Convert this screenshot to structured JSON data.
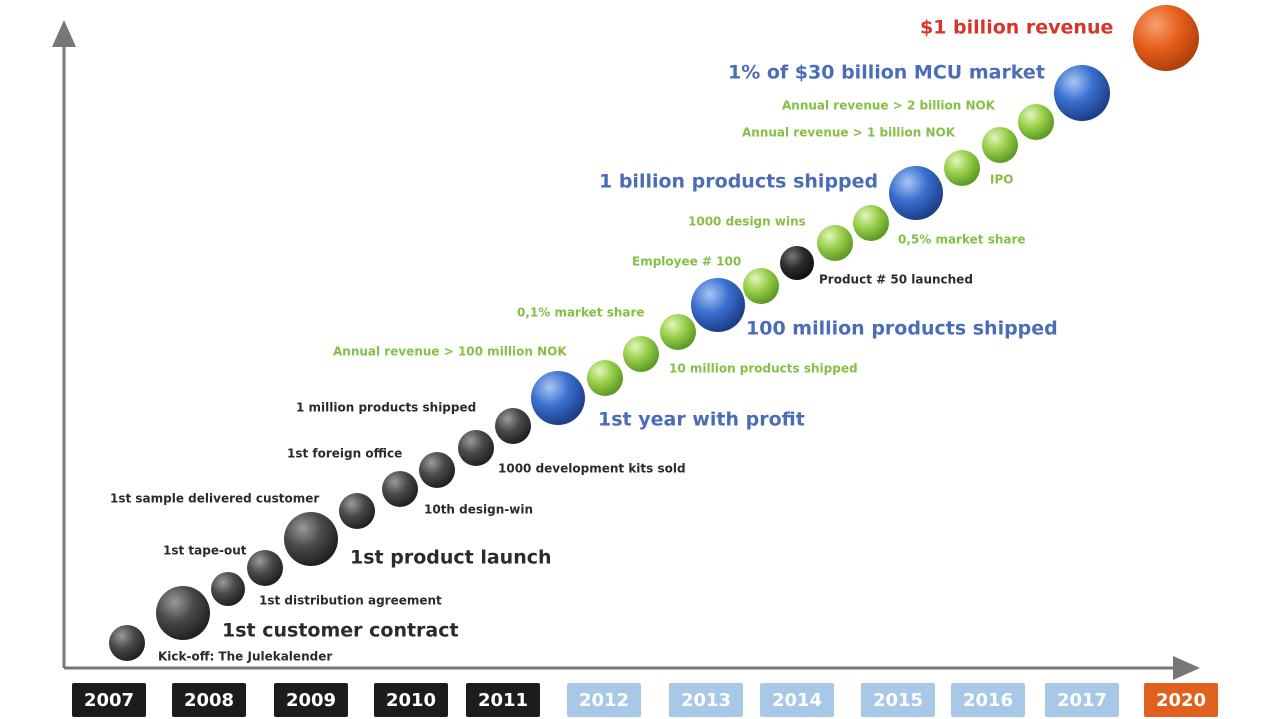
{
  "years": [
    "2007",
    "2008",
    "2009",
    "2010",
    "2011",
    "2012",
    "2013",
    "2014",
    "2015",
    "2016",
    "2017",
    "2020"
  ],
  "milestones": [
    "Kick-off: The Julekalender",
    "1st customer contract",
    "1st tape-out",
    "1st distribution agreement",
    "1st sample delivered customer",
    "1st product launch",
    "1st foreign office",
    "10th design-win",
    "1 million products shipped",
    "1000 development kits sold",
    "1st year with profit",
    "Annual revenue > 100 million NOK",
    "10 million products shipped",
    "0,1% market share",
    "100 million products shipped",
    "Employee # 100",
    "Product # 50 launched",
    "1000 design wins",
    "0,5% market share",
    "1 billion products shipped",
    "IPO",
    "Annual revenue > 1 billion NOK",
    "Annual revenue > 2 billion NOK",
    "1% of $30 billion MCU market",
    "$1 billion revenue"
  ]
}
